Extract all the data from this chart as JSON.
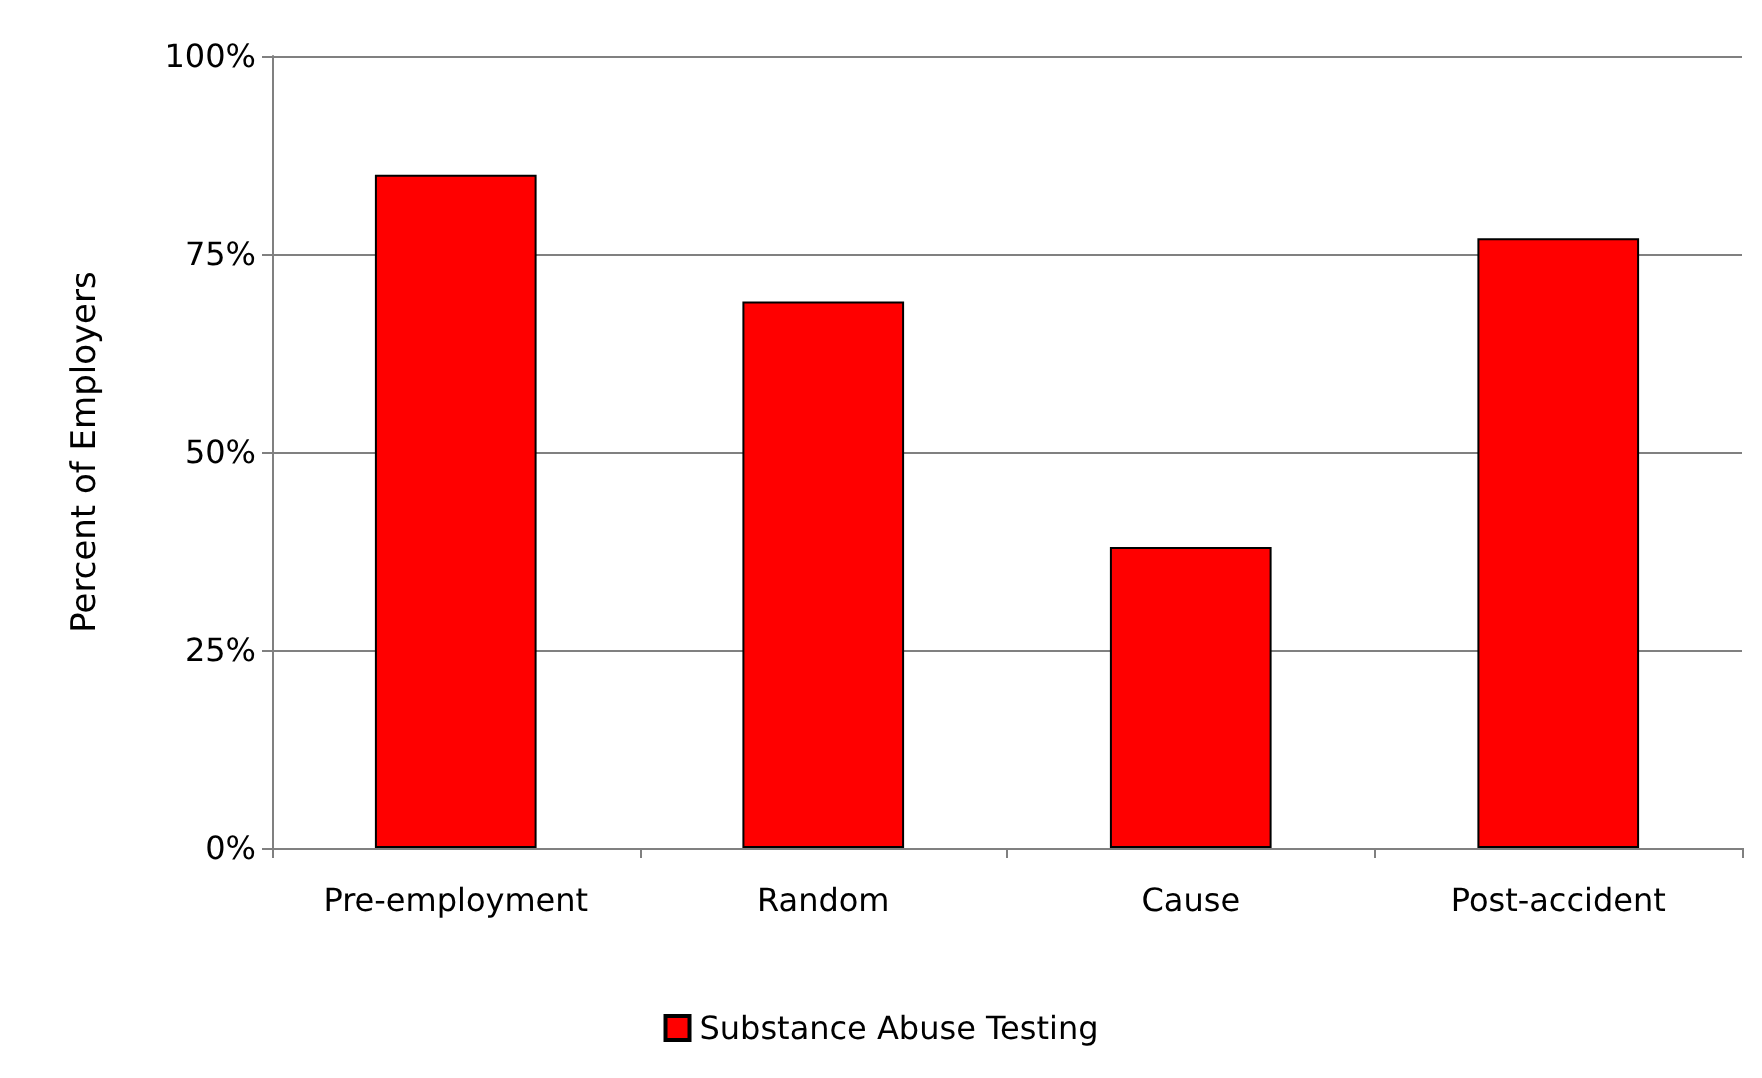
{
  "chart_data": {
    "type": "bar",
    "ylabel": "Percent of Employers",
    "categories": [
      "Pre-employment",
      "Random",
      "Cause",
      "Post-accident"
    ],
    "series": [
      {
        "name": "Substance Abuse Testing",
        "color": "#ff0000",
        "values": [
          85,
          69,
          38,
          77
        ]
      }
    ],
    "ylim": [
      0,
      100
    ],
    "yticks": [
      {
        "value": 0,
        "label": "0%"
      },
      {
        "value": 25,
        "label": "25%"
      },
      {
        "value": 50,
        "label": "50%"
      },
      {
        "value": 75,
        "label": "75%"
      },
      {
        "value": 100,
        "label": "100%"
      }
    ],
    "grid": "y",
    "legend": "bottom"
  }
}
